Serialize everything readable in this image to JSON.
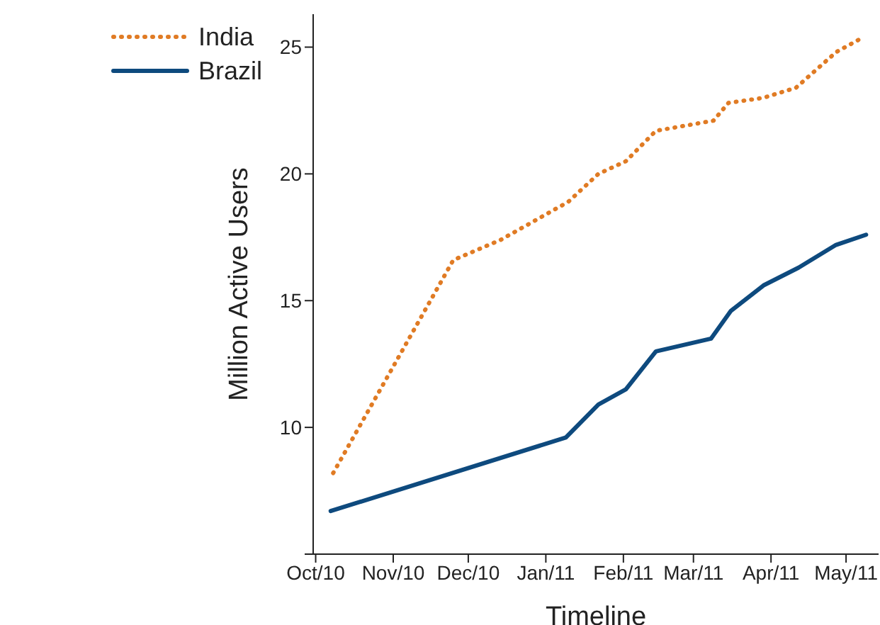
{
  "chart_data": {
    "type": "line",
    "xlabel": "Timeline",
    "ylabel": "Million Active Users",
    "xlim": [
      "2010-09-30",
      "2011-05-14"
    ],
    "ylim": [
      5,
      26.3
    ],
    "xticks": [
      {
        "value": "2010-10-01",
        "label": "Oct/10"
      },
      {
        "value": "2010-11-01",
        "label": "Nov/10"
      },
      {
        "value": "2010-12-01",
        "label": "Dec/10"
      },
      {
        "value": "2011-01-01",
        "label": "Jan/11"
      },
      {
        "value": "2011-02-01",
        "label": "Feb/11"
      },
      {
        "value": "2011-03-01",
        "label": "Mar/11"
      },
      {
        "value": "2011-04-01",
        "label": "Apr/11"
      },
      {
        "value": "2011-05-01",
        "label": "May/11"
      }
    ],
    "yticks": [
      {
        "value": 5,
        "label": null
      },
      10,
      15,
      20,
      25
    ],
    "grid": false,
    "legend": "top left",
    "marker": "none",
    "series": [
      {
        "name": "India",
        "color": "#e07b24",
        "line_style": "dotted",
        "x": [
          "2010-10-08",
          "2010-11-25",
          "2010-12-14",
          "2011-01-10",
          "2011-01-22",
          "2011-02-02",
          "2011-02-14",
          "2011-03-09",
          "2011-03-15",
          "2011-03-29",
          "2011-04-11",
          "2011-04-27",
          "2011-05-08"
        ],
        "values": [
          8.2,
          16.6,
          17.4,
          18.9,
          20.0,
          20.5,
          21.7,
          22.1,
          22.8,
          23.0,
          23.4,
          24.8,
          25.4
        ]
      },
      {
        "name": "Brazil",
        "color": "#0e4a7e",
        "line_style": "solid",
        "x": [
          "2010-10-07",
          "2011-01-09",
          "2011-01-22",
          "2011-02-02",
          "2011-02-14",
          "2011-03-08",
          "2011-03-16",
          "2011-03-29",
          "2011-04-12",
          "2011-04-27",
          "2011-05-09"
        ],
        "values": [
          6.7,
          9.6,
          10.9,
          11.5,
          13.0,
          13.5,
          14.6,
          15.6,
          16.3,
          17.2,
          17.6
        ]
      }
    ]
  }
}
